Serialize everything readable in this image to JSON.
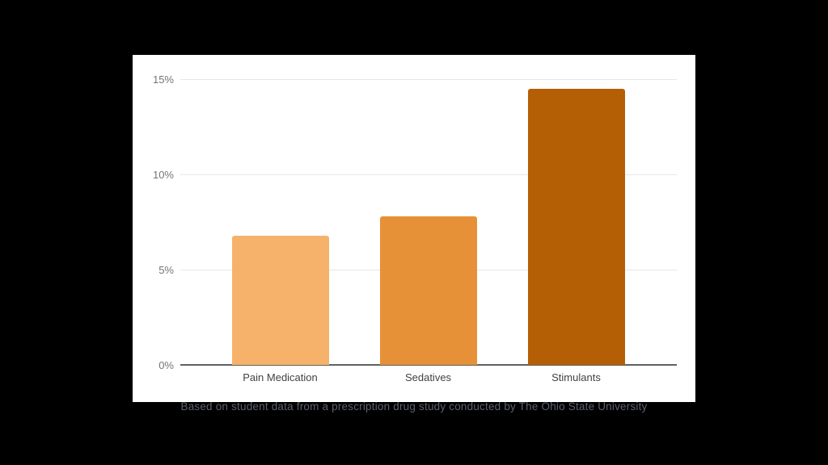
{
  "slide": {
    "background": "#000000",
    "caption": "Based on student data from a prescription drug study conducted by The Ohio State University"
  },
  "chart_data": {
    "type": "bar",
    "title": "",
    "xlabel": "",
    "ylabel": "",
    "categories": [
      "Pain Medication",
      "Sedatives",
      "Stimulants"
    ],
    "values": [
      6.8,
      7.8,
      14.5
    ],
    "bar_colors": [
      "#f6b26b",
      "#e69138",
      "#b45f06"
    ],
    "ylim": [
      0,
      15
    ],
    "yticks": [
      0,
      5,
      10,
      15
    ],
    "ytick_labels": [
      "0%",
      "5%",
      "10%",
      "15%"
    ],
    "grid": true,
    "legend_position": "none",
    "chart_background": "#ffffff"
  },
  "colors": {
    "gridline": "#e6e6e6",
    "axis_line": "#616161",
    "tick_label": "#757575",
    "category_label": "#424242",
    "caption_text": "#5d6070"
  }
}
